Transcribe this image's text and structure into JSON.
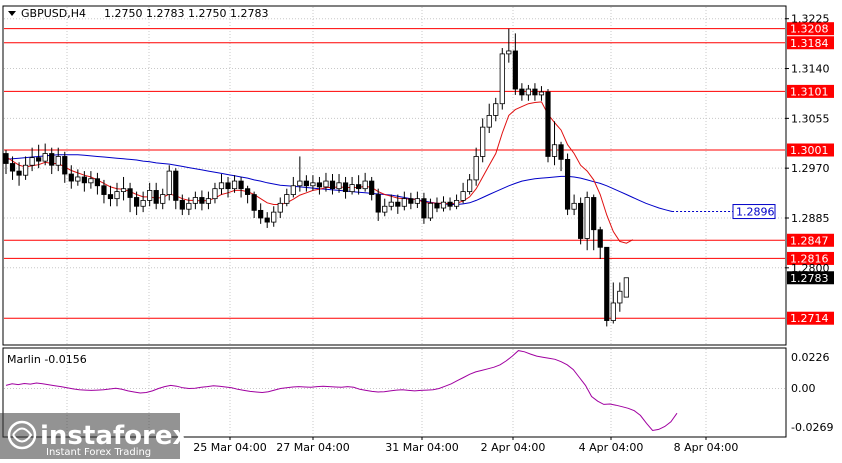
{
  "header": {
    "symbol_label": "GBPUSD,H4",
    "ohlc": "1.2750 1.2783 1.2750 1.2783"
  },
  "indicator": {
    "label": "Marlin -0.0156",
    "ticks": [
      "0.0226",
      "0.00",
      "-0.0269"
    ]
  },
  "watermark": {
    "brand": "instaforex",
    "tagline": "Instant Forex Trading"
  },
  "colors": {
    "level": "#ff0000",
    "candle": "#000000",
    "ma_fast": "#e01010",
    "ma_slow": "#0000c8",
    "marlin": "#a000a0",
    "grid": "#c8c8c8",
    "bg": "#ffffff"
  },
  "chart_data": {
    "type": "candlestick",
    "price_axis": {
      "min": 1.267,
      "max": 1.3245,
      "ticks": [
        "1.3225",
        "1.3140",
        "1.3055",
        "1.2970",
        "1.2885",
        "1.2800"
      ]
    },
    "x_labels": [
      "25 Mar 04:00",
      "27 Mar 04:00",
      "31 Mar 04:00",
      "2 Apr 04:00",
      "4 Apr 04:00",
      "8 Apr 04:00"
    ],
    "levels": [
      {
        "value": 1.3208,
        "label": "1.3208"
      },
      {
        "value": 1.3184,
        "label": "1.3184"
      },
      {
        "value": 1.3101,
        "label": "1.3101"
      },
      {
        "value": 1.3001,
        "label": "1.3001"
      },
      {
        "value": 1.2847,
        "label": "1.2847"
      },
      {
        "value": 1.2816,
        "label": "1.2816"
      },
      {
        "value": 1.2714,
        "label": "1.2714"
      }
    ],
    "current_price": {
      "value": 1.2783,
      "label": "1.2783"
    },
    "ma_slow_label": {
      "value": 1.2896,
      "label": "1.2896"
    },
    "candles": [
      [
        1.2995,
        1.2978,
        1.3001,
        1.296
      ],
      [
        1.2978,
        1.2965,
        1.299,
        1.295
      ],
      [
        1.2965,
        1.2958,
        1.298,
        1.294
      ],
      [
        1.2958,
        1.2975,
        1.299,
        1.295
      ],
      [
        1.2975,
        1.2988,
        1.3005,
        1.2965
      ],
      [
        1.2988,
        1.2982,
        1.301,
        1.297
      ],
      [
        1.2982,
        1.2995,
        1.3012,
        1.2975
      ],
      [
        1.2995,
        1.2975,
        1.3005,
        1.296
      ],
      [
        1.2975,
        1.299,
        1.3005,
        1.2965
      ],
      [
        1.299,
        1.296,
        1.2998,
        1.2945
      ],
      [
        1.296,
        1.2948,
        1.2975,
        1.2935
      ],
      [
        1.2948,
        1.2955,
        1.2968,
        1.294
      ],
      [
        1.2955,
        1.2945,
        1.2965,
        1.293
      ],
      [
        1.2945,
        1.2952,
        1.2965,
        1.2935
      ],
      [
        1.2952,
        1.294,
        1.2962,
        1.2925
      ],
      [
        1.294,
        1.2925,
        1.295,
        1.291
      ],
      [
        1.2925,
        1.2918,
        1.294,
        1.2905
      ],
      [
        1.2918,
        1.293,
        1.2945,
        1.2905
      ],
      [
        1.293,
        1.2935,
        1.2955,
        1.2915
      ],
      [
        1.2935,
        1.292,
        1.2945,
        1.2895
      ],
      [
        1.292,
        1.2905,
        1.293,
        1.289
      ],
      [
        1.2905,
        1.2915,
        1.293,
        1.2895
      ],
      [
        1.2915,
        1.2932,
        1.2945,
        1.2905
      ],
      [
        1.2932,
        1.291,
        1.2945,
        1.29
      ],
      [
        1.291,
        1.2925,
        1.2935,
        1.29
      ],
      [
        1.2925,
        1.2965,
        1.2975,
        1.2915
      ],
      [
        1.2965,
        1.2915,
        1.297,
        1.29
      ],
      [
        1.2915,
        1.29,
        1.2925,
        1.289
      ],
      [
        1.29,
        1.291,
        1.292,
        1.289
      ],
      [
        1.291,
        1.292,
        1.293,
        1.29
      ],
      [
        1.292,
        1.291,
        1.2932,
        1.2898
      ],
      [
        1.291,
        1.2918,
        1.293,
        1.29
      ],
      [
        1.2918,
        1.2935,
        1.2945,
        1.291
      ],
      [
        1.2935,
        1.2945,
        1.296,
        1.2925
      ],
      [
        1.2945,
        1.2935,
        1.2955,
        1.292
      ],
      [
        1.2935,
        1.2948,
        1.2958,
        1.2928
      ],
      [
        1.2948,
        1.2935,
        1.2955,
        1.292
      ],
      [
        1.2935,
        1.2925,
        1.294,
        1.291
      ],
      [
        1.2925,
        1.2898,
        1.293,
        1.2885
      ],
      [
        1.2898,
        1.2885,
        1.291,
        1.2875
      ],
      [
        1.2885,
        1.2878,
        1.2895,
        1.2868
      ],
      [
        1.2878,
        1.2895,
        1.2905,
        1.287
      ],
      [
        1.2895,
        1.291,
        1.292,
        1.2885
      ],
      [
        1.291,
        1.2925,
        1.2935,
        1.2905
      ],
      [
        1.2925,
        1.294,
        1.2955,
        1.292
      ],
      [
        1.294,
        1.2948,
        1.299,
        1.293
      ],
      [
        1.2948,
        1.294,
        1.2958,
        1.293
      ],
      [
        1.294,
        1.2945,
        1.2958,
        1.2932
      ],
      [
        1.2945,
        1.2938,
        1.2955,
        1.2925
      ],
      [
        1.2938,
        1.2948,
        1.2962,
        1.293
      ],
      [
        1.2948,
        1.2935,
        1.296,
        1.2925
      ],
      [
        1.2935,
        1.2945,
        1.296,
        1.2928
      ],
      [
        1.2945,
        1.293,
        1.2955,
        1.2918
      ],
      [
        1.293,
        1.2942,
        1.2955,
        1.2925
      ],
      [
        1.2942,
        1.2935,
        1.2958,
        1.2925
      ],
      [
        1.2935,
        1.2948,
        1.2962,
        1.293
      ],
      [
        1.2948,
        1.2925,
        1.2955,
        1.2915
      ],
      [
        1.2925,
        1.2895,
        1.2935,
        1.288
      ],
      [
        1.2895,
        1.2905,
        1.2918,
        1.2888
      ],
      [
        1.2905,
        1.2912,
        1.2925,
        1.2898
      ],
      [
        1.2912,
        1.2905,
        1.2925,
        1.2892
      ],
      [
        1.2905,
        1.2918,
        1.293,
        1.2898
      ],
      [
        1.2918,
        1.291,
        1.2928,
        1.29
      ],
      [
        1.291,
        1.2918,
        1.293,
        1.2902
      ],
      [
        1.2918,
        1.2885,
        1.2928,
        1.2875
      ],
      [
        1.2885,
        1.291,
        1.2918,
        1.288
      ],
      [
        1.291,
        1.2902,
        1.292,
        1.2895
      ],
      [
        1.2902,
        1.2912,
        1.2922,
        1.2896
      ],
      [
        1.2912,
        1.2905,
        1.292,
        1.2898
      ],
      [
        1.2905,
        1.2915,
        1.2925,
        1.29
      ],
      [
        1.2915,
        1.293,
        1.2945,
        1.291
      ],
      [
        1.293,
        1.295,
        1.296,
        1.2925
      ],
      [
        1.295,
        1.299,
        1.3005,
        1.294
      ],
      [
        1.299,
        1.304,
        1.3055,
        1.298
      ],
      [
        1.304,
        1.306,
        1.308,
        1.303
      ],
      [
        1.306,
        1.308,
        1.309,
        1.305
      ],
      [
        1.308,
        1.3165,
        1.3175,
        1.307
      ],
      [
        1.3165,
        1.317,
        1.3208,
        1.315
      ],
      [
        1.317,
        1.3105,
        1.32,
        1.3095
      ],
      [
        1.3105,
        1.3095,
        1.3115,
        1.3085
      ],
      [
        1.3095,
        1.3105,
        1.3112,
        1.3085
      ],
      [
        1.3105,
        1.3095,
        1.3115,
        1.3085
      ],
      [
        1.3095,
        1.31,
        1.311,
        1.3085
      ],
      [
        1.31,
        1.299,
        1.3105,
        1.298
      ],
      [
        1.299,
        1.301,
        1.305,
        1.2975
      ],
      [
        1.301,
        1.2985,
        1.3015,
        1.2965
      ],
      [
        1.2985,
        1.29,
        1.2995,
        1.289
      ],
      [
        1.29,
        1.291,
        1.2925,
        1.289
      ],
      [
        1.291,
        1.285,
        1.292,
        1.284
      ],
      [
        1.285,
        1.292,
        1.293,
        1.283
      ],
      [
        1.292,
        1.2865,
        1.2925,
        1.283
      ],
      [
        1.2865,
        1.2835,
        1.287,
        1.2815
      ],
      [
        1.2835,
        1.271,
        1.2835,
        1.27
      ],
      [
        1.271,
        1.274,
        1.2775,
        1.2705
      ],
      [
        1.274,
        1.276,
        1.2775,
        1.2725
      ],
      [
        1.275,
        1.2783,
        1.2783,
        1.275
      ]
    ],
    "ma_fast": [
      1.299,
      1.2982,
      1.2975,
      1.2972,
      1.2974,
      1.2976,
      1.298,
      1.2978,
      1.2978,
      1.2972,
      1.2966,
      1.2962,
      1.2958,
      1.2955,
      1.295,
      1.2944,
      1.2938,
      1.2935,
      1.2934,
      1.293,
      1.2925,
      1.2921,
      1.2921,
      1.2919,
      1.292,
      1.2926,
      1.2923,
      1.2918,
      1.2915,
      1.2915,
      1.2914,
      1.2915,
      1.2919,
      1.2925,
      1.2928,
      1.2932,
      1.2932,
      1.293,
      1.2925,
      1.2918,
      1.2911,
      1.2908,
      1.2908,
      1.2911,
      1.2917,
      1.2924,
      1.2928,
      1.2932,
      1.2934,
      1.2937,
      1.2937,
      1.2938,
      1.2937,
      1.2937,
      1.2937,
      1.2939,
      1.2937,
      1.293,
      1.2925,
      1.2922,
      1.2919,
      1.2918,
      1.2917,
      1.2917,
      1.2911,
      1.2911,
      1.291,
      1.291,
      1.2909,
      1.291,
      1.2914,
      1.2921,
      1.2935,
      1.2955,
      1.2975,
      1.2995,
      1.303,
      1.306,
      1.307,
      1.3075,
      1.308,
      1.3082,
      1.3083,
      1.3062,
      1.3048,
      1.3035,
      1.301,
      1.2995,
      1.2975,
      1.2965,
      1.295,
      1.2925,
      1.289,
      1.2862,
      1.2845,
      1.2842,
      1.2848
    ],
    "ma_slow": [
      1.2985,
      1.2986,
      1.2987,
      1.2988,
      1.2989,
      1.299,
      1.2991,
      1.2992,
      1.2993,
      1.2993,
      1.2993,
      1.2993,
      1.2992,
      1.2991,
      1.299,
      1.2989,
      1.2988,
      1.2987,
      1.2986,
      1.2985,
      1.2984,
      1.2982,
      1.2981,
      1.2979,
      1.2978,
      1.2977,
      1.2975,
      1.2973,
      1.2971,
      1.2969,
      1.2967,
      1.2965,
      1.2963,
      1.2961,
      1.2959,
      1.2957,
      1.2955,
      1.2953,
      1.295,
      1.2948,
      1.2945,
      1.2943,
      1.2941,
      1.294,
      1.2939,
      1.2938,
      1.2937,
      1.2936,
      1.2935,
      1.2934,
      1.2933,
      1.2932,
      1.2931,
      1.293,
      1.2929,
      1.2928,
      1.2927,
      1.2926,
      1.2925,
      1.2924,
      1.2922,
      1.292,
      1.2918,
      1.2916,
      1.2914,
      1.2912,
      1.291,
      1.2909,
      1.2908,
      1.2908,
      1.2909,
      1.2911,
      1.2915,
      1.292,
      1.2925,
      1.293,
      1.2935,
      1.294,
      1.2944,
      1.2948,
      1.295,
      1.2952,
      1.2953,
      1.2954,
      1.2955,
      1.2956,
      1.2956,
      1.2955,
      1.2953,
      1.295,
      1.2947,
      1.2944,
      1.294,
      1.2935,
      1.293,
      1.2925,
      1.292,
      1.2915,
      1.291,
      1.2906,
      1.2902,
      1.2899,
      1.2896
    ],
    "marlin": [
      0.002,
      0.003,
      0.0025,
      0.0032,
      0.0028,
      0.0035,
      0.003,
      0.0024,
      0.0018,
      0.0012,
      0.0005,
      -0.0002,
      -0.0008,
      -0.001,
      -0.0012,
      -0.001,
      -0.0007,
      -0.0003,
      0.0002,
      -0.0005,
      -0.0015,
      -0.0022,
      -0.0028,
      -0.0025,
      -0.0015,
      0.0,
      0.0012,
      0.002,
      0.0015,
      0.0005,
      0.0,
      0.0002,
      0.0008,
      0.0012,
      0.0018,
      0.0015,
      0.001,
      0.0005,
      -0.0005,
      -0.0012,
      -0.0018,
      -0.0022,
      -0.0025,
      -0.002,
      -0.001,
      0.0,
      0.0005,
      0.001,
      0.0012,
      0.001,
      0.0008,
      0.0012,
      0.0015,
      0.0012,
      0.001,
      0.0008,
      0.0012,
      0.0008,
      -0.0005,
      -0.0012,
      -0.0018,
      -0.0022,
      -0.002,
      -0.0015,
      -0.001,
      -0.0008,
      -0.0012,
      -0.0015,
      -0.0012,
      -0.001,
      -0.0008,
      0.0,
      0.0015,
      0.003,
      0.005,
      0.007,
      0.009,
      0.0105,
      0.0115,
      0.0125,
      0.0135,
      0.015,
      0.0175,
      0.0205,
      0.024,
      0.0232,
      0.0218,
      0.0205,
      0.0198,
      0.0192,
      0.0185,
      0.017,
      0.015,
      0.012,
      0.007,
      0.002,
      -0.005,
      -0.008,
      -0.01,
      -0.0098,
      -0.0105,
      -0.0115,
      -0.0125,
      -0.014,
      -0.017,
      -0.022,
      -0.0265,
      -0.0258,
      -0.024,
      -0.021,
      -0.0156
    ]
  }
}
